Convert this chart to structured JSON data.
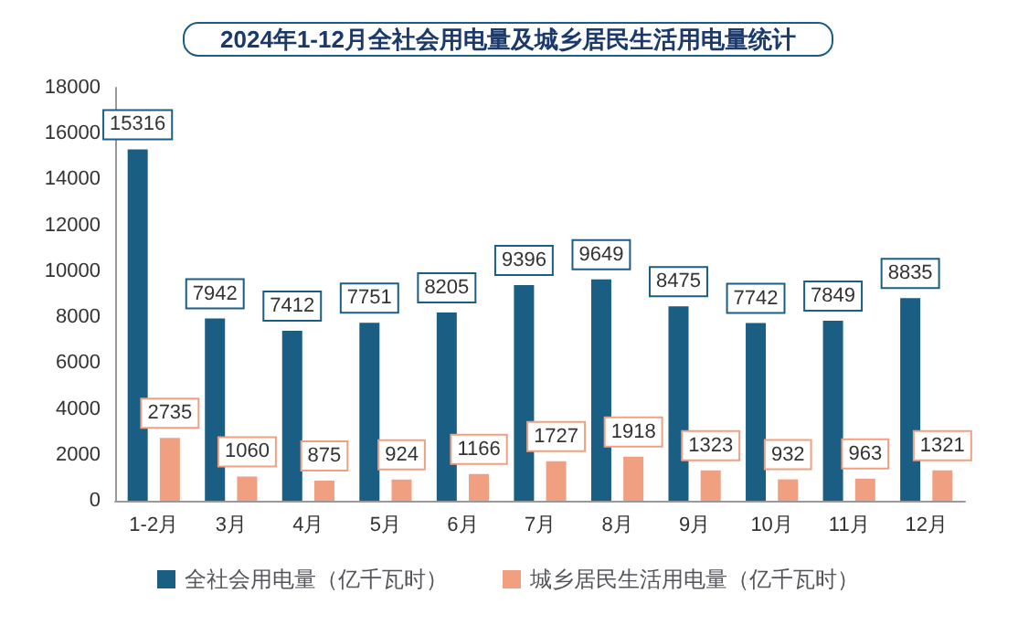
{
  "chart_data": {
    "type": "bar",
    "title": "2024年1-12月全社会用电量及城乡居民生活用电量统计",
    "categories": [
      "1-2月",
      "3月",
      "4月",
      "5月",
      "6月",
      "7月",
      "8月",
      "9月",
      "10月",
      "11月",
      "12月"
    ],
    "series": [
      {
        "name": "全社会用电量（亿千瓦时）",
        "color": "#1b5e84",
        "values": [
          15316,
          7942,
          7412,
          7751,
          8205,
          9396,
          9649,
          8475,
          7742,
          7849,
          8835
        ]
      },
      {
        "name": "城乡居民生活用电量（亿千瓦时）",
        "color": "#f0a080",
        "values": [
          2735,
          1060,
          875,
          924,
          1166,
          1727,
          1918,
          1323,
          932,
          963,
          1321
        ]
      }
    ],
    "ylim": [
      0,
      18000
    ],
    "yticks": [
      0,
      2000,
      4000,
      6000,
      8000,
      10000,
      12000,
      14000,
      16000,
      18000
    ],
    "grid": false,
    "legend": "bottom",
    "data_labels": true
  }
}
